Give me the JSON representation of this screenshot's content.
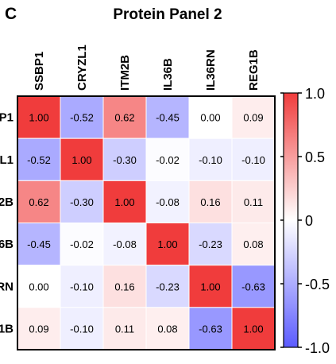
{
  "panel_letter": "C",
  "chart_data": {
    "type": "heatmap",
    "title": "Protein Panel 2",
    "columns": [
      "SSBP1",
      "CRYZL1",
      "ITM2B",
      "IL36B",
      "IL36RN",
      "REG1B"
    ],
    "rows": [
      "P1",
      "L1",
      "2B",
      "6B",
      "RN",
      "1B"
    ],
    "values": [
      [
        1.0,
        -0.52,
        0.62,
        -0.45,
        0.0,
        0.09
      ],
      [
        -0.52,
        1.0,
        -0.3,
        -0.02,
        -0.1,
        -0.1
      ],
      [
        0.62,
        -0.3,
        1.0,
        -0.08,
        0.16,
        0.11
      ],
      [
        -0.45,
        -0.02,
        -0.08,
        1.0,
        -0.23,
        0.08
      ],
      [
        0.0,
        -0.1,
        0.16,
        -0.23,
        1.0,
        -0.63
      ],
      [
        0.09,
        -0.1,
        0.11,
        0.08,
        -0.63,
        1.0
      ]
    ],
    "value_labels": [
      [
        "1.00",
        "-0.52",
        "0.62",
        "-0.45",
        "0.00",
        "0.09"
      ],
      [
        "-0.52",
        "1.00",
        "-0.30",
        "-0.02",
        "-0.10",
        "-0.10"
      ],
      [
        "0.62",
        "-0.30",
        "1.00",
        "-0.08",
        "0.16",
        "0.11"
      ],
      [
        "-0.45",
        "-0.02",
        "-0.08",
        "1.00",
        "-0.23",
        "0.08"
      ],
      [
        "0.00",
        "-0.10",
        "0.16",
        "-0.23",
        "1.00",
        "-0.63"
      ],
      [
        "0.09",
        "-0.10",
        "0.11",
        "0.08",
        "-0.63",
        "1.00"
      ]
    ],
    "colorbar": {
      "range": [
        -1.0,
        1.0
      ],
      "ticks": [
        1.0,
        0.5,
        0,
        -0.5,
        -1.0
      ],
      "tick_labels": [
        "1.0",
        "0.5",
        "0",
        "-0.5",
        "-1.0"
      ],
      "colors": {
        "low": "#5b5bff",
        "mid": "#ffffff",
        "high": "#f03c3c"
      }
    }
  }
}
